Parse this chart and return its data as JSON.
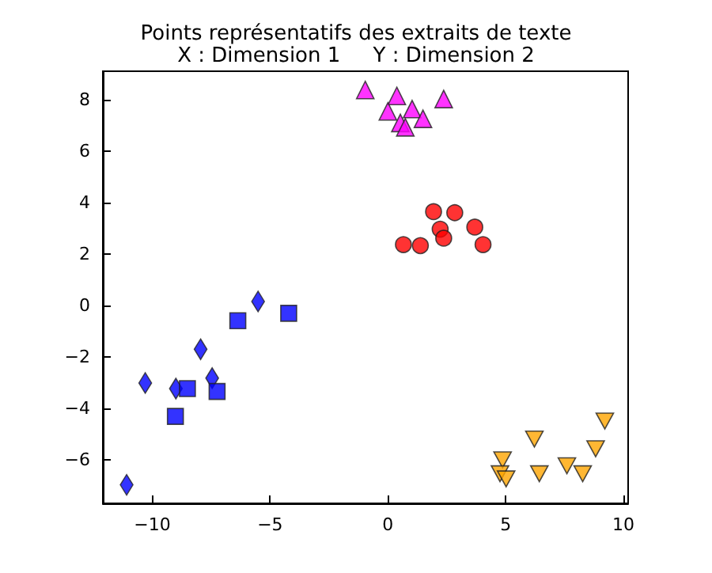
{
  "chart_data": {
    "type": "scatter",
    "title": "Points représentatifs des extraits de texte",
    "subtitle": "X : Dimension 1     Y : Dimension 2",
    "xlim": [
      -12.1,
      10.2
    ],
    "xticks": [
      -10,
      -5,
      0,
      5,
      10
    ],
    "ylim": [
      -7.7,
      9.1
    ],
    "yticks": [
      -6,
      -4,
      -2,
      0,
      2,
      4,
      6,
      8
    ],
    "series": [
      {
        "color": "#ff00ff",
        "marker": "triangle",
        "x": [
          -0.96,
          0.38,
          0.0,
          1.03,
          0.53,
          0.74,
          1.49,
          2.37
        ],
        "values": [
          8.37,
          8.14,
          7.54,
          7.63,
          7.09,
          6.92,
          7.25,
          8.02
        ]
      },
      {
        "color": "#ff0000",
        "marker": "circle",
        "x": [
          1.94,
          2.84,
          2.22,
          2.37,
          3.69,
          0.66,
          1.38,
          4.04
        ],
        "values": [
          3.64,
          3.6,
          2.96,
          2.61,
          3.04,
          2.36,
          2.32,
          2.36
        ]
      },
      {
        "color": "#0000ff",
        "marker": "diamond",
        "x": [
          -5.51,
          -7.95,
          -10.3,
          -9.0,
          -7.46,
          -11.09
        ],
        "values": [
          0.15,
          -1.71,
          -3.02,
          -3.24,
          -2.83,
          -6.98
        ]
      },
      {
        "color": "#0000ff",
        "marker": "square",
        "x": [
          -6.37,
          -4.21,
          -8.51,
          -7.25,
          -9.02
        ],
        "values": [
          -0.6,
          -0.31,
          -3.24,
          -3.35,
          -4.32
        ]
      },
      {
        "color": "#ffa500",
        "marker": "triangle_down",
        "x": [
          4.87,
          4.76,
          5.02,
          6.22,
          6.43,
          7.6,
          8.27,
          8.82,
          9.21
        ],
        "values": [
          -6.01,
          -6.55,
          -6.75,
          -5.2,
          -6.55,
          -6.24,
          -6.55,
          -5.58,
          -4.5
        ]
      }
    ]
  }
}
